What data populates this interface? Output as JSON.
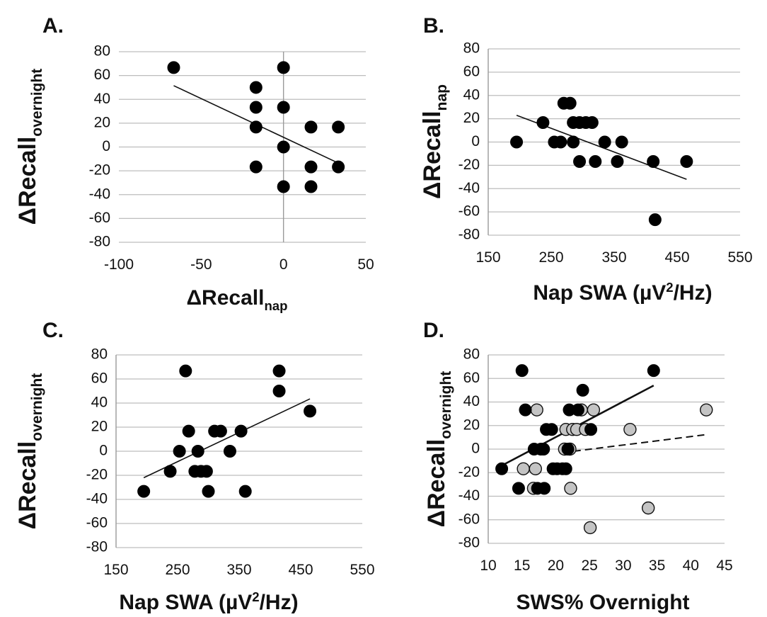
{
  "chart_data": [
    {
      "panel": "A.",
      "type": "scatter",
      "xlabel": {
        "main": "ΔRecall",
        "sub": "nap"
      },
      "ylabel": {
        "main": "ΔRecall",
        "sub": "overnight"
      },
      "xlim": [
        -100,
        50
      ],
      "ylim": [
        -80,
        80
      ],
      "xticks": [
        -100,
        -50,
        0,
        50
      ],
      "yticks": [
        80,
        60,
        40,
        20,
        0,
        -20,
        -40,
        -60,
        -80
      ],
      "grid": "horizontal",
      "series": [
        {
          "marker": "black",
          "points": [
            [
              -66.7,
              66.7
            ],
            [
              -16.7,
              50
            ],
            [
              -16.7,
              33.3
            ],
            [
              -16.7,
              16.7
            ],
            [
              -16.7,
              -16.7
            ],
            [
              0,
              66.7
            ],
            [
              0,
              33.3
            ],
            [
              0,
              0
            ],
            [
              0,
              -33.3
            ],
            [
              16.7,
              16.7
            ],
            [
              16.7,
              -16.7
            ],
            [
              16.7,
              -33.3
            ],
            [
              33.3,
              16.7
            ],
            [
              33.3,
              -16.7
            ]
          ]
        }
      ],
      "trendlines": [
        {
          "style": "solid",
          "from": [
            -66.7,
            51.5
          ],
          "to": [
            33.3,
            -13.5
          ]
        }
      ]
    },
    {
      "panel": "B.",
      "type": "scatter",
      "xlabel": {
        "main": "Nap SWA (µV",
        "sup": "2",
        "rest": "/Hz)"
      },
      "ylabel": {
        "main": "ΔRecall",
        "sub": "nap"
      },
      "xlim": [
        150,
        550
      ],
      "ylim": [
        -80,
        80
      ],
      "xticks": [
        150,
        250,
        350,
        450,
        550
      ],
      "yticks": [
        80,
        60,
        40,
        20,
        0,
        -20,
        -40,
        -60,
        -80
      ],
      "grid": "horizontal",
      "series": [
        {
          "marker": "black",
          "points": [
            [
              195,
              0
            ],
            [
              237,
              16.7
            ],
            [
              255,
              0
            ],
            [
              265,
              0
            ],
            [
              270,
              33.3
            ],
            [
              280,
              33.3
            ],
            [
              285,
              0
            ],
            [
              285,
              16.7
            ],
            [
              295,
              16.7
            ],
            [
              295,
              -16.7
            ],
            [
              305,
              16.7
            ],
            [
              315,
              16.7
            ],
            [
              320,
              -16.7
            ],
            [
              335,
              0
            ],
            [
              355,
              -16.7
            ],
            [
              362,
              0
            ],
            [
              412,
              -16.7
            ],
            [
              415,
              -66.7
            ],
            [
              465,
              -16.7
            ]
          ]
        }
      ],
      "trendlines": [
        {
          "style": "solid",
          "from": [
            195,
            23
          ],
          "to": [
            465,
            -32
          ]
        }
      ]
    },
    {
      "panel": "C.",
      "type": "scatter",
      "xlabel": {
        "main": "Nap SWA (µV",
        "sup": "2",
        "rest": "/Hz)"
      },
      "ylabel": {
        "main": "ΔRecall",
        "sub": "overnight"
      },
      "xlim": [
        150,
        550
      ],
      "ylim": [
        -80,
        80
      ],
      "xticks": [
        150,
        250,
        350,
        450,
        550
      ],
      "yticks": [
        80,
        60,
        40,
        20,
        0,
        -20,
        -40,
        -60,
        -80
      ],
      "grid": "horizontal",
      "series": [
        {
          "marker": "black",
          "points": [
            [
              195,
              -33.3
            ],
            [
              238,
              -16.7
            ],
            [
              253,
              0
            ],
            [
              263,
              66.7
            ],
            [
              268,
              16.7
            ],
            [
              278,
              -16.7
            ],
            [
              283,
              0
            ],
            [
              288,
              -16.7
            ],
            [
              297,
              -16.7
            ],
            [
              300,
              -33.3
            ],
            [
              310,
              16.7
            ],
            [
              320,
              16.7
            ],
            [
              335,
              0
            ],
            [
              353,
              16.7
            ],
            [
              360,
              -33.3
            ],
            [
              415,
              66.7
            ],
            [
              415,
              50
            ],
            [
              465,
              33.3
            ]
          ]
        }
      ],
      "trendlines": [
        {
          "style": "solid",
          "from": [
            195,
            -22
          ],
          "to": [
            465,
            43.5
          ]
        }
      ]
    },
    {
      "panel": "D.",
      "type": "scatter",
      "xlabel": {
        "main": "SWS% Overnight"
      },
      "ylabel": {
        "main": "ΔRecall",
        "sub": "overnight"
      },
      "xlim": [
        10,
        45
      ],
      "ylim": [
        -80,
        80
      ],
      "xticks": [
        10,
        15,
        20,
        25,
        30,
        35,
        40,
        45
      ],
      "yticks": [
        80,
        60,
        40,
        20,
        0,
        -20,
        -40,
        -60,
        -80
      ],
      "grid": "horizontal",
      "series": [
        {
          "marker": "black",
          "points": [
            [
              12,
              -16.7
            ],
            [
              14.5,
              -33.3
            ],
            [
              15,
              66.7
            ],
            [
              15.5,
              33.3
            ],
            [
              16.8,
              0
            ],
            [
              17.3,
              -33.3
            ],
            [
              17.8,
              0
            ],
            [
              18.2,
              0
            ],
            [
              18.3,
              -33.3
            ],
            [
              18.6,
              16.7
            ],
            [
              19.4,
              16.7
            ],
            [
              19.6,
              -16.7
            ],
            [
              20.2,
              -16.7
            ],
            [
              21,
              -16.7
            ],
            [
              21.5,
              -16.7
            ],
            [
              21.8,
              0
            ],
            [
              22,
              33.3
            ],
            [
              23.3,
              33.3
            ],
            [
              24,
              50
            ],
            [
              25.2,
              16.7
            ],
            [
              34.5,
              66.7
            ]
          ]
        },
        {
          "marker": "gray",
          "points": [
            [
              15.2,
              -16.7
            ],
            [
              16.7,
              -33.3
            ],
            [
              17,
              -16.7
            ],
            [
              17.2,
              33.3
            ],
            [
              21.3,
              0
            ],
            [
              21.5,
              16.7
            ],
            [
              22.1,
              0
            ],
            [
              22.2,
              -33.3
            ],
            [
              22.5,
              16.7
            ],
            [
              23.1,
              16.7
            ],
            [
              23.8,
              33.3
            ],
            [
              24.4,
              16.7
            ],
            [
              25.1,
              -66.7
            ],
            [
              25.6,
              33.3
            ],
            [
              31,
              16.7
            ],
            [
              33.7,
              -50
            ],
            [
              42.3,
              33.3
            ]
          ]
        }
      ],
      "trendlines": [
        {
          "style": "solid",
          "from": [
            12,
            -14
          ],
          "to": [
            34.5,
            54
          ]
        },
        {
          "style": "dashed",
          "from": [
            21,
            -3
          ],
          "to": [
            42.3,
            12.3
          ]
        }
      ]
    }
  ]
}
